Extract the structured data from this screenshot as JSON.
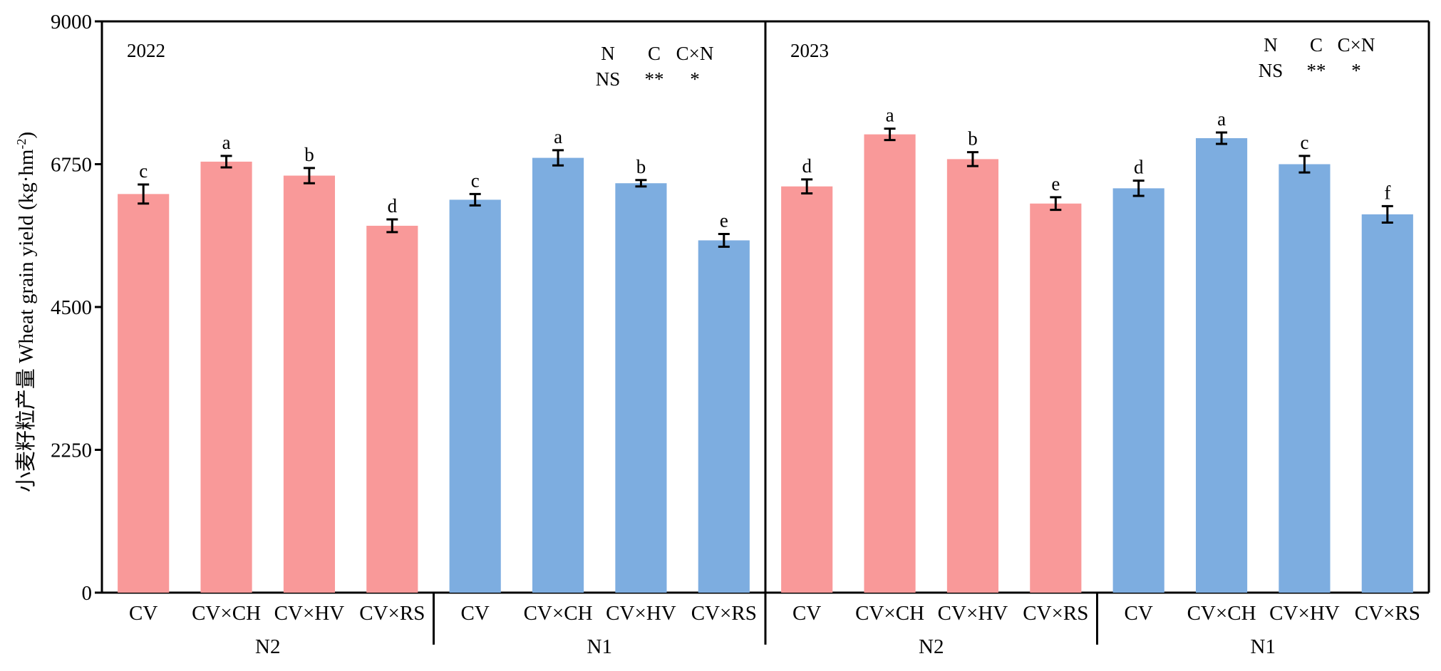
{
  "chart_data": {
    "type": "bar",
    "ylabel_main": "小麦籽粒产量 Wheat grain yield (kg·hm",
    "ylabel_sup": "-2",
    "ylabel_close": ")",
    "ylim": [
      0,
      9000
    ],
    "yticks": [
      "0",
      "2250",
      "4500",
      "6750",
      "9000"
    ],
    "colors": {
      "N2": "#f99999",
      "N1": "#7dade0"
    },
    "panels": [
      {
        "year": "2022",
        "stats": {
          "headers": [
            "N",
            "C",
            "C×N"
          ],
          "values": [
            "NS",
            "**",
            "*"
          ]
        },
        "groups": [
          {
            "name": "N2",
            "bars": [
              {
                "category": "CV",
                "value": 6280,
                "error": 150,
                "letter": "c"
              },
              {
                "category": "CV×CH",
                "value": 6790,
                "error": 90,
                "letter": "a"
              },
              {
                "category": "CV×HV",
                "value": 6570,
                "error": 120,
                "letter": "b"
              },
              {
                "category": "CV×RS",
                "value": 5780,
                "error": 100,
                "letter": "d"
              }
            ]
          },
          {
            "name": "N1",
            "bars": [
              {
                "category": "CV",
                "value": 6190,
                "error": 90,
                "letter": "c"
              },
              {
                "category": "CV×CH",
                "value": 6850,
                "error": 120,
                "letter": "a"
              },
              {
                "category": "CV×HV",
                "value": 6450,
                "error": 50,
                "letter": "b"
              },
              {
                "category": "CV×RS",
                "value": 5550,
                "error": 100,
                "letter": "e"
              }
            ]
          }
        ]
      },
      {
        "year": "2023",
        "stats": {
          "headers": [
            "N",
            "C",
            "C×N"
          ],
          "values": [
            "NS",
            "**",
            "*"
          ]
        },
        "groups": [
          {
            "name": "N2",
            "bars": [
              {
                "category": "CV",
                "value": 6400,
                "error": 110,
                "letter": "d"
              },
              {
                "category": "CV×CH",
                "value": 7220,
                "error": 90,
                "letter": "a"
              },
              {
                "category": "CV×HV",
                "value": 6830,
                "error": 110,
                "letter": "b"
              },
              {
                "category": "CV×RS",
                "value": 6130,
                "error": 100,
                "letter": "e"
              }
            ]
          },
          {
            "name": "N1",
            "bars": [
              {
                "category": "CV",
                "value": 6370,
                "error": 120,
                "letter": "d"
              },
              {
                "category": "CV×CH",
                "value": 7160,
                "error": 90,
                "letter": "a"
              },
              {
                "category": "CV×HV",
                "value": 6750,
                "error": 130,
                "letter": "c"
              },
              {
                "category": "CV×RS",
                "value": 5960,
                "error": 130,
                "letter": "f"
              }
            ]
          }
        ]
      }
    ]
  }
}
